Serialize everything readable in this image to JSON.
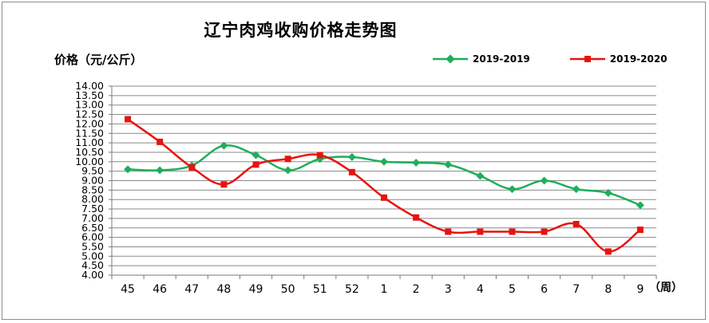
{
  "chart_data": {
    "type": "line",
    "title": "辽宁肉鸡收购价格走势图",
    "ylabel": "价格（元/公斤）",
    "xunit": "（周）",
    "categories": [
      "45",
      "46",
      "47",
      "48",
      "49",
      "50",
      "51",
      "52",
      "1",
      "2",
      "3",
      "4",
      "5",
      "6",
      "7",
      "8",
      "9"
    ],
    "ylim": [
      4.0,
      14.0
    ],
    "ytick_step": 0.5,
    "yticks": [
      "4.00",
      "4.50",
      "5.00",
      "5.50",
      "6.00",
      "6.50",
      "7.00",
      "7.50",
      "8.00",
      "8.50",
      "9.00",
      "9.50",
      "10.00",
      "10.50",
      "11.00",
      "11.50",
      "12.00",
      "12.50",
      "13.00",
      "13.50",
      "14.00"
    ],
    "grid": true,
    "legend_position": "top-right",
    "series": [
      {
        "name": "2019-2019",
        "color": "#1fae5a",
        "marker": "diamond",
        "values": [
          9.6,
          9.55,
          9.8,
          10.85,
          10.35,
          9.55,
          10.15,
          10.25,
          10.0,
          9.95,
          9.85,
          9.25,
          8.55,
          9.0,
          8.55,
          8.35,
          7.7
        ]
      },
      {
        "name": "2019-2020",
        "color": "#e8130f",
        "marker": "square",
        "values": [
          12.25,
          11.05,
          9.7,
          8.8,
          9.85,
          10.15,
          10.35,
          9.45,
          8.1,
          7.05,
          6.3,
          6.3,
          6.3,
          6.3,
          6.7,
          5.25,
          6.4
        ]
      }
    ]
  }
}
